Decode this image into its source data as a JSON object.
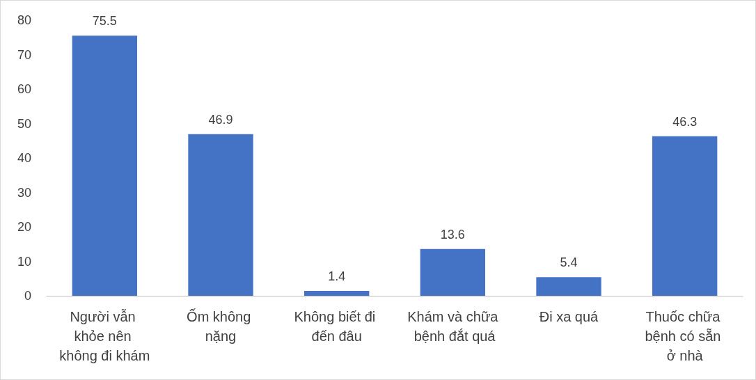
{
  "chart_data": {
    "type": "bar",
    "categories": [
      "Người vẫn khỏe nên không đi khám",
      "Ốm không nặng",
      "Không biết đi đến đâu",
      "Khám và chữa bệnh đắt quá",
      "Đi xa quá",
      "Thuốc chữa bệnh có sẵn ở nhà"
    ],
    "values": [
      75.5,
      46.9,
      1.4,
      13.6,
      5.4,
      46.3
    ],
    "color": "#4472c4",
    "ylim": [
      0,
      80
    ],
    "yticks": [
      0,
      10,
      20,
      30,
      40,
      50,
      60,
      70,
      80
    ],
    "grid": false,
    "data_labels": true
  }
}
